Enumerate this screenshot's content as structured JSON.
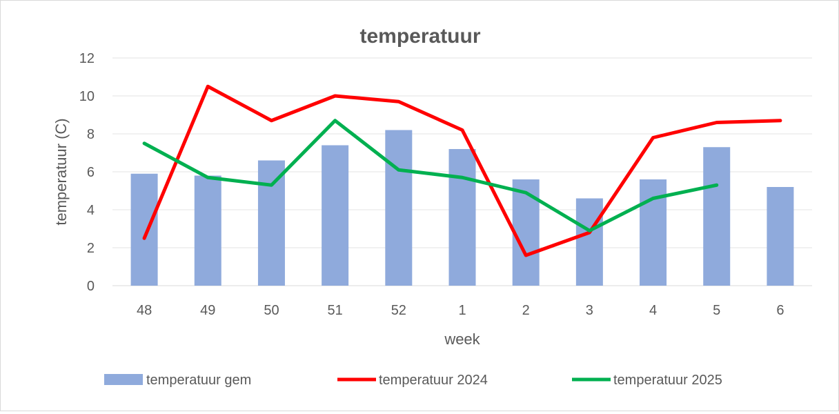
{
  "chart_data": {
    "type": "bar",
    "title": "temperatuur",
    "xlabel": "week",
    "ylabel": "temperatuur (C)",
    "ylim": [
      0,
      12
    ],
    "yticks": [
      "0",
      "2",
      "4",
      "6",
      "8",
      "10",
      "12"
    ],
    "grid": true,
    "legend_position": "bottom",
    "categories": [
      "48",
      "49",
      "50",
      "51",
      "52",
      "1",
      "2",
      "3",
      "4",
      "5",
      "6"
    ],
    "series": [
      {
        "name": "temperatuur gem",
        "type": "bar",
        "color": "#8faadc",
        "values": [
          5.9,
          5.8,
          6.6,
          7.4,
          8.2,
          7.2,
          5.6,
          4.6,
          5.6,
          7.3,
          5.2
        ]
      },
      {
        "name": "temperatuur 2024",
        "type": "line",
        "color": "#ff0000",
        "values": [
          2.5,
          10.5,
          8.7,
          10.0,
          9.7,
          8.2,
          1.6,
          2.8,
          7.8,
          8.6,
          8.7
        ]
      },
      {
        "name": "temperatuur 2025",
        "type": "line",
        "color": "#00b050",
        "values": [
          7.5,
          5.7,
          5.3,
          8.7,
          6.1,
          5.7,
          4.9,
          2.9,
          4.6,
          5.3,
          null
        ]
      }
    ]
  }
}
